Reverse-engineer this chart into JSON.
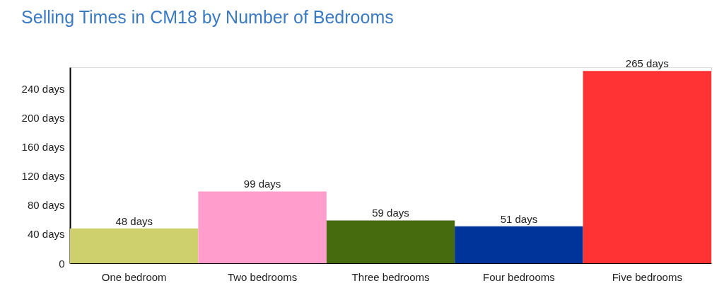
{
  "chart_data": {
    "type": "bar",
    "title": "Selling Times in CM18 by Number of Bedrooms",
    "categories": [
      "One bedroom",
      "Two bedrooms",
      "Three bedrooms",
      "Four bedrooms",
      "Five bedrooms"
    ],
    "values": [
      48,
      99,
      59,
      51,
      265
    ],
    "colors": [
      "#cdd06c",
      "#ff9dcc",
      "#466a0e",
      "#00349b",
      "#ff3333"
    ],
    "value_labels": [
      "48 days",
      "99 days",
      "59 days",
      "51 days",
      "265 days"
    ],
    "ylim": [
      0,
      270
    ],
    "yticks": [
      {
        "value": 0,
        "label": "0"
      },
      {
        "value": 40,
        "label": "40 days"
      },
      {
        "value": 80,
        "label": "80 days"
      },
      {
        "value": 120,
        "label": "120 days"
      },
      {
        "value": 160,
        "label": "160 days"
      },
      {
        "value": 200,
        "label": "200 days"
      },
      {
        "value": 240,
        "label": "240 days"
      }
    ],
    "grid": false
  }
}
